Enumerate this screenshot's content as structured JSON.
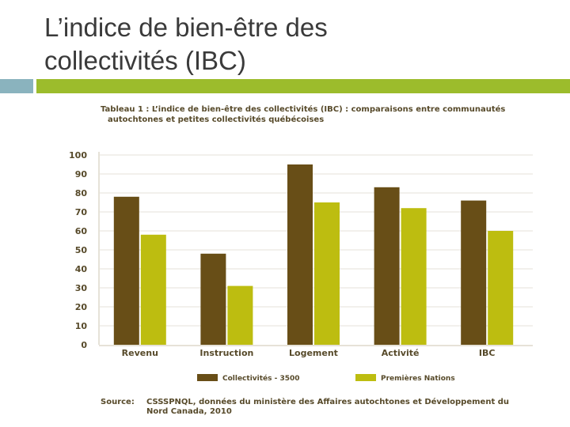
{
  "slide": {
    "title_line1": "L’indice de bien-être des",
    "title_line2": "collectivités (IBC)"
  },
  "figure": {
    "caption_line1": "Tableau 1 : L’indice de bien-être des collectivités (IBC) : comparaisons entre communautés",
    "caption_line2": "autochtones et petites collectivités québécoises",
    "source_label": "Source:",
    "source_text": "CSSSPNQL, données du ministère des Affaires autochtones et Développement du Nord Canada, 2010"
  },
  "colors": {
    "accent_teal": "#8ab3be",
    "accent_green": "#9cbc2c",
    "series_dark": "#684e17",
    "series_light": "#bdbd10",
    "text_brown": "#574a2a",
    "grid": "#e6e2d8"
  },
  "chart_data": {
    "type": "bar",
    "title": "",
    "xlabel": "",
    "ylabel": "",
    "ylim": [
      0,
      100
    ],
    "yticks": [
      "0",
      "10",
      "20",
      "30",
      "40",
      "50",
      "60",
      "70",
      "80",
      "90",
      "100"
    ],
    "categories": [
      "Revenu",
      "Instruction",
      "Logement",
      "Activité",
      "IBC"
    ],
    "series": [
      {
        "name": "Collectivités - 3500",
        "color": "#684e17",
        "values": [
          78,
          48,
          95,
          83,
          76
        ]
      },
      {
        "name": "Premières Nations",
        "color": "#bdbd10",
        "values": [
          58,
          31,
          75,
          72,
          60
        ]
      }
    ],
    "grid": true,
    "legend_position": "bottom"
  }
}
